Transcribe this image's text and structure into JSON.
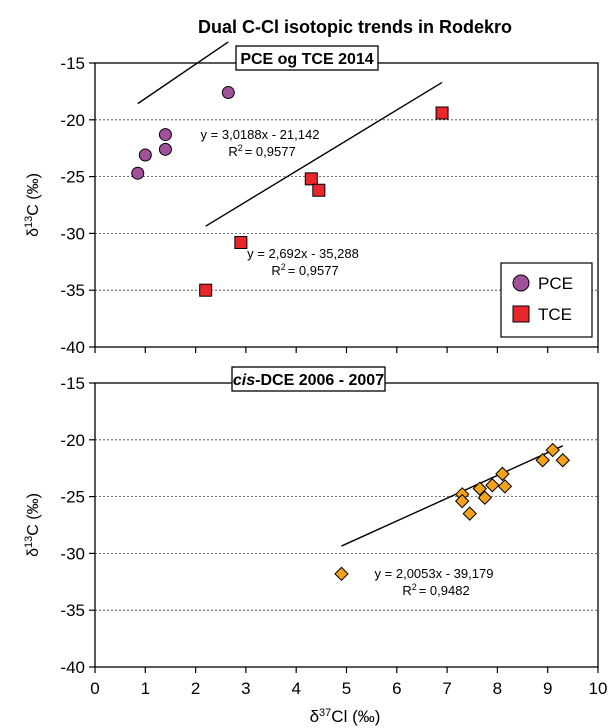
{
  "figure": {
    "title": "Dual C-Cl isotopic trends in Rodekro",
    "xlabel_main": "δ",
    "xlabel_sup": "37",
    "xlabel_rest": "Cl (‰)"
  },
  "chart_data": [
    {
      "type": "scatter",
      "title": "PCE og TCE 2014",
      "ylabel_main": "δ",
      "ylabel_sup": "13",
      "ylabel_rest": "C (‰)",
      "xlim": [
        0,
        10
      ],
      "ylim": [
        -40,
        -15
      ],
      "yticks": [
        -15,
        -20,
        -25,
        -30,
        -35,
        -40
      ],
      "grid": true,
      "legend_position": "bottom-right",
      "series": [
        {
          "name": "PCE",
          "marker": "circle",
          "color": "#a0519a",
          "points": [
            [
              0.85,
              -24.7
            ],
            [
              1.0,
              -23.1
            ],
            [
              1.4,
              -21.3
            ],
            [
              1.4,
              -22.6
            ],
            [
              2.65,
              -17.6
            ]
          ],
          "trend": {
            "slope": 3.0188,
            "intercept": -21.142,
            "x_range": [
              0.85,
              2.65
            ],
            "equation": "y = 3,0188x - 21,142",
            "r2_label": "R",
            "r2_value": "= 0,9577"
          }
        },
        {
          "name": "TCE",
          "marker": "square",
          "color": "#e8262b",
          "points": [
            [
              2.2,
              -35.0
            ],
            [
              2.9,
              -30.8
            ],
            [
              4.3,
              -25.2
            ],
            [
              4.45,
              -26.2
            ],
            [
              6.9,
              -19.4
            ]
          ],
          "trend": {
            "slope": 2.692,
            "intercept": -35.288,
            "x_range": [
              2.2,
              6.9
            ],
            "equation": "y = 2,692x - 35,288",
            "r2_label": "R",
            "r2_value": "= 0,9577"
          }
        }
      ]
    },
    {
      "type": "scatter",
      "title_italic": "cis",
      "title_rest": "-DCE 2006 - 2007",
      "ylabel_main": "δ",
      "ylabel_sup": "13",
      "ylabel_rest": "C (‰)",
      "xlim": [
        0,
        10
      ],
      "ylim": [
        -40,
        -15
      ],
      "xticks": [
        0,
        1,
        2,
        3,
        4,
        5,
        6,
        7,
        8,
        9,
        10
      ],
      "yticks": [
        -15,
        -20,
        -25,
        -30,
        -35,
        -40
      ],
      "grid": true,
      "series": [
        {
          "name": "cis-DCE",
          "marker": "diamond",
          "color": "#f7a21b",
          "points": [
            [
              4.9,
              -31.8
            ],
            [
              7.3,
              -24.8
            ],
            [
              7.3,
              -25.4
            ],
            [
              7.45,
              -26.5
            ],
            [
              7.65,
              -24.3
            ],
            [
              7.75,
              -25.1
            ],
            [
              7.9,
              -24.0
            ],
            [
              8.1,
              -23.0
            ],
            [
              8.15,
              -24.1
            ],
            [
              8.9,
              -21.8
            ],
            [
              9.1,
              -20.9
            ],
            [
              9.3,
              -21.8
            ]
          ],
          "trend": {
            "slope": 2.0053,
            "intercept": -39.179,
            "x_range": [
              4.9,
              9.3
            ],
            "equation": "y = 2,0053x - 39,179",
            "r2_label": "R",
            "r2_value": "= 0,9482"
          }
        }
      ]
    }
  ]
}
